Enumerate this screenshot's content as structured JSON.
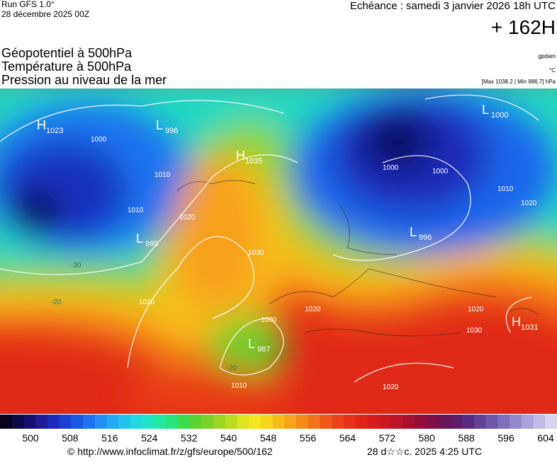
{
  "header": {
    "run": "Run GFS 1.0°",
    "run_date": "28 décembre 2025 00Z",
    "valid": "Echéance : samedi 3 janvier 2026 18h UTC",
    "lead": "+ 162H",
    "titles": [
      "Géopotentiel à 500hPa",
      "Température à 500hPa",
      "Pression au niveau de la mer"
    ],
    "units": [
      "gpdam",
      "°C",
      "[Max 1038.2 | Min 986.7] hPa"
    ]
  },
  "map": {
    "centers": [
      {
        "letter": "H",
        "value": "1023"
      },
      {
        "letter": "L",
        "value": "996"
      },
      {
        "letter": "H",
        "value": "1035"
      },
      {
        "letter": "L",
        "value": "995"
      },
      {
        "letter": "L",
        "value": "1000"
      },
      {
        "letter": "L",
        "value": "996"
      },
      {
        "letter": "L",
        "value": "987"
      },
      {
        "letter": "H",
        "value": "1031"
      }
    ],
    "isobar_labels": [
      "1000",
      "1010",
      "1020",
      "1010",
      "1020",
      "1030",
      "1020",
      "1000",
      "1000",
      "1010",
      "1020",
      "1000",
      "1020",
      "1010",
      "1020",
      "1030",
      "-20",
      "-30",
      "-20"
    ]
  },
  "colorbar": {
    "labels": [
      "500",
      "508",
      "516",
      "524",
      "532",
      "540",
      "548",
      "556",
      "564",
      "572",
      "580",
      "588",
      "596",
      "604"
    ],
    "colors": [
      "#0a0420",
      "#100a48",
      "#180f70",
      "#1c1a96",
      "#1a2cb8",
      "#1840d4",
      "#1a58e6",
      "#1c72f0",
      "#2090f4",
      "#22aaf4",
      "#22c4ee",
      "#22d8e0",
      "#22e4c4",
      "#22e8a0",
      "#28e478",
      "#3cdc4c",
      "#5ad232",
      "#7cd02a",
      "#9cd426",
      "#bcdc22",
      "#dce420",
      "#f4e61e",
      "#f8d41c",
      "#f8bc1a",
      "#f8a41a",
      "#f68a18",
      "#f47218",
      "#f05a18",
      "#ec4418",
      "#e63018",
      "#e02418",
      "#d81c1c",
      "#cc1820",
      "#bc1428",
      "#a81030",
      "#940c3c",
      "#801048",
      "#6c1458",
      "#5e1c6a",
      "#5a2c80",
      "#604296",
      "#6c58aa",
      "#7e70bc",
      "#9288cc",
      "#a8a0da",
      "#c0bae6",
      "#d8d4f0"
    ]
  },
  "footer": {
    "source": "© http://www.infoclimat.fr/z/gfs/europe/500/162",
    "stamp": "28 d☆☆c. 2025  4:25 UTC"
  }
}
